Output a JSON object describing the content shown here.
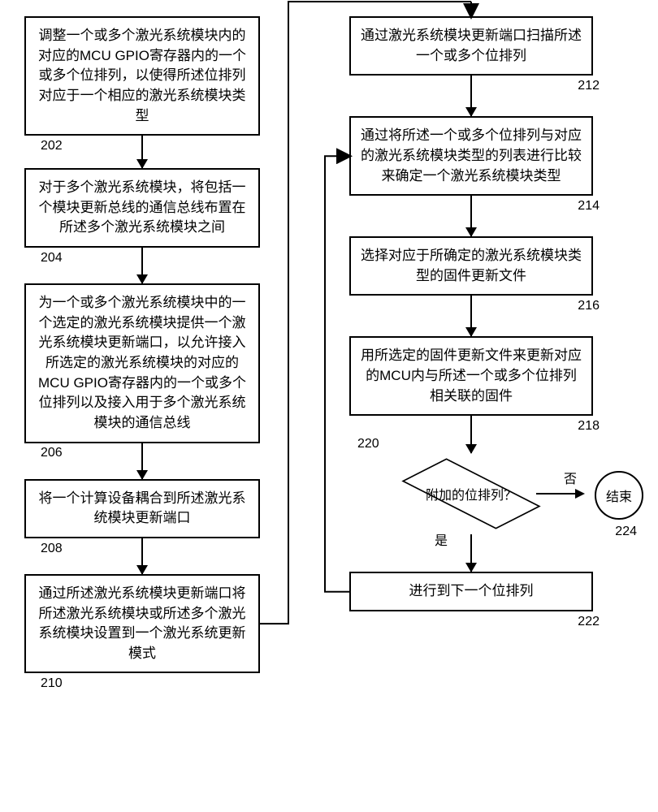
{
  "left": {
    "n202": {
      "text": "调整一个或多个激光系统模块内的对应的MCU GPIO寄存器内的一个或多个位排列，以使得所述位排列对应于一个相应的激光系统模块类型",
      "label": "202"
    },
    "n204": {
      "text": "对于多个激光系统模块，将包括一个模块更新总线的通信总线布置在所述多个激光系统模块之间",
      "label": "204"
    },
    "n206": {
      "text": "为一个或多个激光系统模块中的一个选定的激光系统模块提供一个激光系统模块更新端口，以允许接入所选定的激光系统模块的对应的MCU GPIO寄存器内的一个或多个位排列以及接入用于多个激光系统模块的通信总线",
      "label": "206"
    },
    "n208": {
      "text": "将一个计算设备耦合到所述激光系统模块更新端口",
      "label": "208"
    },
    "n210": {
      "text": "通过所述激光系统模块更新端口将所述激光系统模块或所述多个激光系统模块设置到一个激光系统更新模式",
      "label": "210"
    }
  },
  "right": {
    "n212": {
      "text": "通过激光系统模块更新端口扫描所述一个或多个位排列",
      "label": "212"
    },
    "n214": {
      "text": "通过将所述一个或多个位排列与对应的激光系统模块类型的列表进行比较来确定一个激光系统模块类型",
      "label": "214"
    },
    "n216": {
      "text": "选择对应于所确定的激光系统模块类型的固件更新文件",
      "label": "216"
    },
    "n218": {
      "text": "用所选定的固件更新文件来更新对应的MCU内与所述一个或多个位排列相关联的固件",
      "label": "218"
    },
    "n220": {
      "text": "附加的位排列？",
      "label": "220",
      "yes": "是",
      "no": "否"
    },
    "n222": {
      "text": "进行到下一个位排列",
      "label": "222"
    },
    "n224": {
      "text": "结束",
      "label": "224"
    }
  },
  "style": {
    "stroke": "#000000",
    "stroke_width": 2,
    "arrow_gap_short": 32,
    "arrow_gap_med": 40
  }
}
